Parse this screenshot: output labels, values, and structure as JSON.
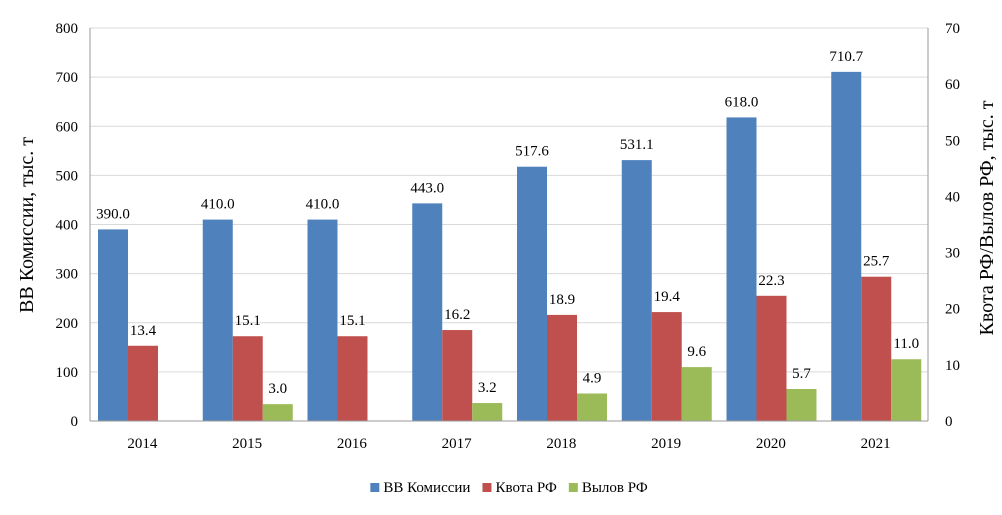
{
  "chart_data": {
    "type": "bar",
    "categories": [
      "2014",
      "2015",
      "2016",
      "2017",
      "2018",
      "2019",
      "2020",
      "2021"
    ],
    "series": [
      {
        "name": "ВВ Комиссии",
        "axis": "left",
        "color": "#4f81bd",
        "values": [
          390.0,
          410.0,
          410.0,
          443.0,
          517.6,
          531.1,
          618.0,
          710.7
        ],
        "labels": [
          "390.0",
          "410.0",
          "410.0",
          "443.0",
          "517.6",
          "531.1",
          "618.0",
          "710.7"
        ]
      },
      {
        "name": "Квота РФ",
        "axis": "right",
        "color": "#c0504d",
        "values": [
          13.4,
          15.1,
          15.1,
          16.2,
          18.9,
          19.4,
          22.3,
          25.7
        ],
        "labels": [
          "13.4",
          "15.1",
          "15.1",
          "16.2",
          "18.9",
          "19.4",
          "22.3",
          "25.7"
        ]
      },
      {
        "name": "Вылов РФ",
        "axis": "right",
        "color": "#9bbb59",
        "values": [
          null,
          3.0,
          null,
          3.2,
          4.9,
          9.6,
          5.7,
          11.0
        ],
        "labels": [
          "",
          "3.0",
          "",
          "3.2",
          "4.9",
          "9.6",
          "5.7",
          "11.0"
        ]
      }
    ],
    "ylabel": "ВВ Комиссии, тыс. т",
    "y2label": "Квота РФ/Вылов РФ, тыс. т",
    "ylim": [
      0,
      800
    ],
    "y2lim": [
      0,
      70
    ],
    "yticks": [
      "0",
      "100",
      "200",
      "300",
      "400",
      "500",
      "600",
      "700",
      "800"
    ],
    "y2ticks": [
      "0",
      "10",
      "20",
      "30",
      "40",
      "50",
      "60",
      "70"
    ],
    "grid": true,
    "legend": "bottom"
  }
}
